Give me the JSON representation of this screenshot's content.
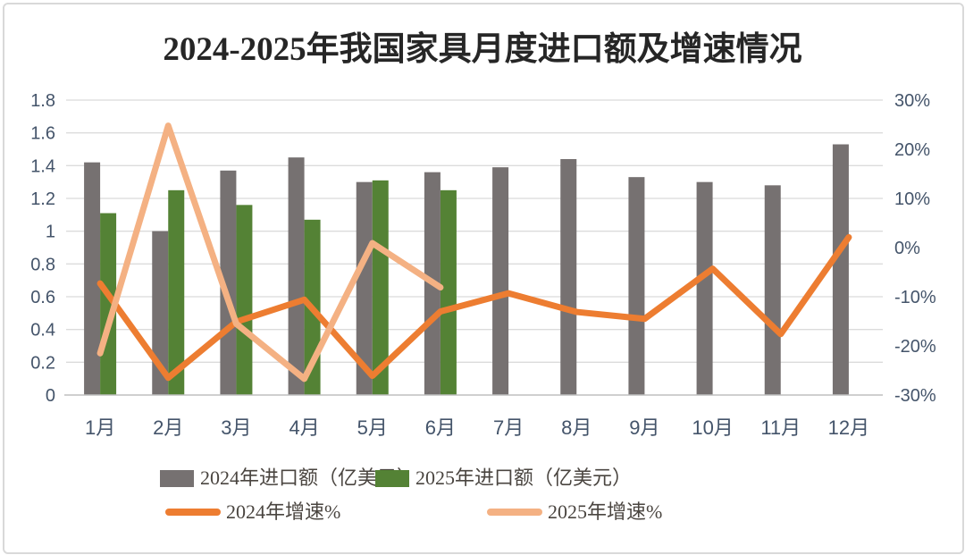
{
  "chart_data": {
    "type": "combo_bar_line",
    "title": "2024-2025年我国家具月度进口额及增速情况",
    "categories": [
      "1月",
      "2月",
      "3月",
      "4月",
      "5月",
      "6月",
      "7月",
      "8月",
      "9月",
      "10月",
      "11月",
      "12月"
    ],
    "series": [
      {
        "name": "2024年进口额（亿美元）",
        "type": "bar",
        "axis": "left",
        "color": "#767171",
        "values": [
          1.42,
          1.0,
          1.37,
          1.45,
          1.3,
          1.36,
          1.39,
          1.44,
          1.33,
          1.3,
          1.28,
          1.53
        ]
      },
      {
        "name": "2025年进口额（亿美元）",
        "type": "bar",
        "axis": "left",
        "color": "#548235",
        "values": [
          1.11,
          1.25,
          1.16,
          1.07,
          1.31,
          1.25
        ]
      },
      {
        "name": "2024年增速%",
        "type": "line",
        "axis": "right",
        "color": "#ED7D31",
        "values": [
          -7.3,
          -26.5,
          -15.1,
          -10.6,
          -26.1,
          -13.0,
          -9.3,
          -13.1,
          -14.5,
          -4.3,
          -17.6,
          2.1
        ]
      },
      {
        "name": "2025年增速%",
        "type": "line",
        "axis": "right",
        "color": "#F4B183",
        "values": [
          -21.5,
          24.8,
          -15.5,
          -26.7,
          0.9,
          -8.1
        ]
      }
    ],
    "left_axis": {
      "min": 0,
      "max": 1.8,
      "step": 0.2,
      "ticks": [
        "1.8",
        "1.6",
        "1.4",
        "1.2",
        "1",
        "0.8",
        "0.6",
        "0.4",
        "0.2",
        "0"
      ]
    },
    "right_axis": {
      "min": -30,
      "max": 30,
      "step": 10,
      "ticks": [
        "30%",
        "20%",
        "10%",
        "0%",
        "-10%",
        "-20%",
        "-30%"
      ]
    },
    "grid": true,
    "legend_position": "bottom"
  },
  "colors": {
    "grid_line": "#DBDBDB",
    "axis_line": "#BFBFBF",
    "tick_text": "#44546A",
    "title_text": "#262626",
    "legend_text": "#4A4540",
    "frame_border": "#D9D9D9"
  }
}
